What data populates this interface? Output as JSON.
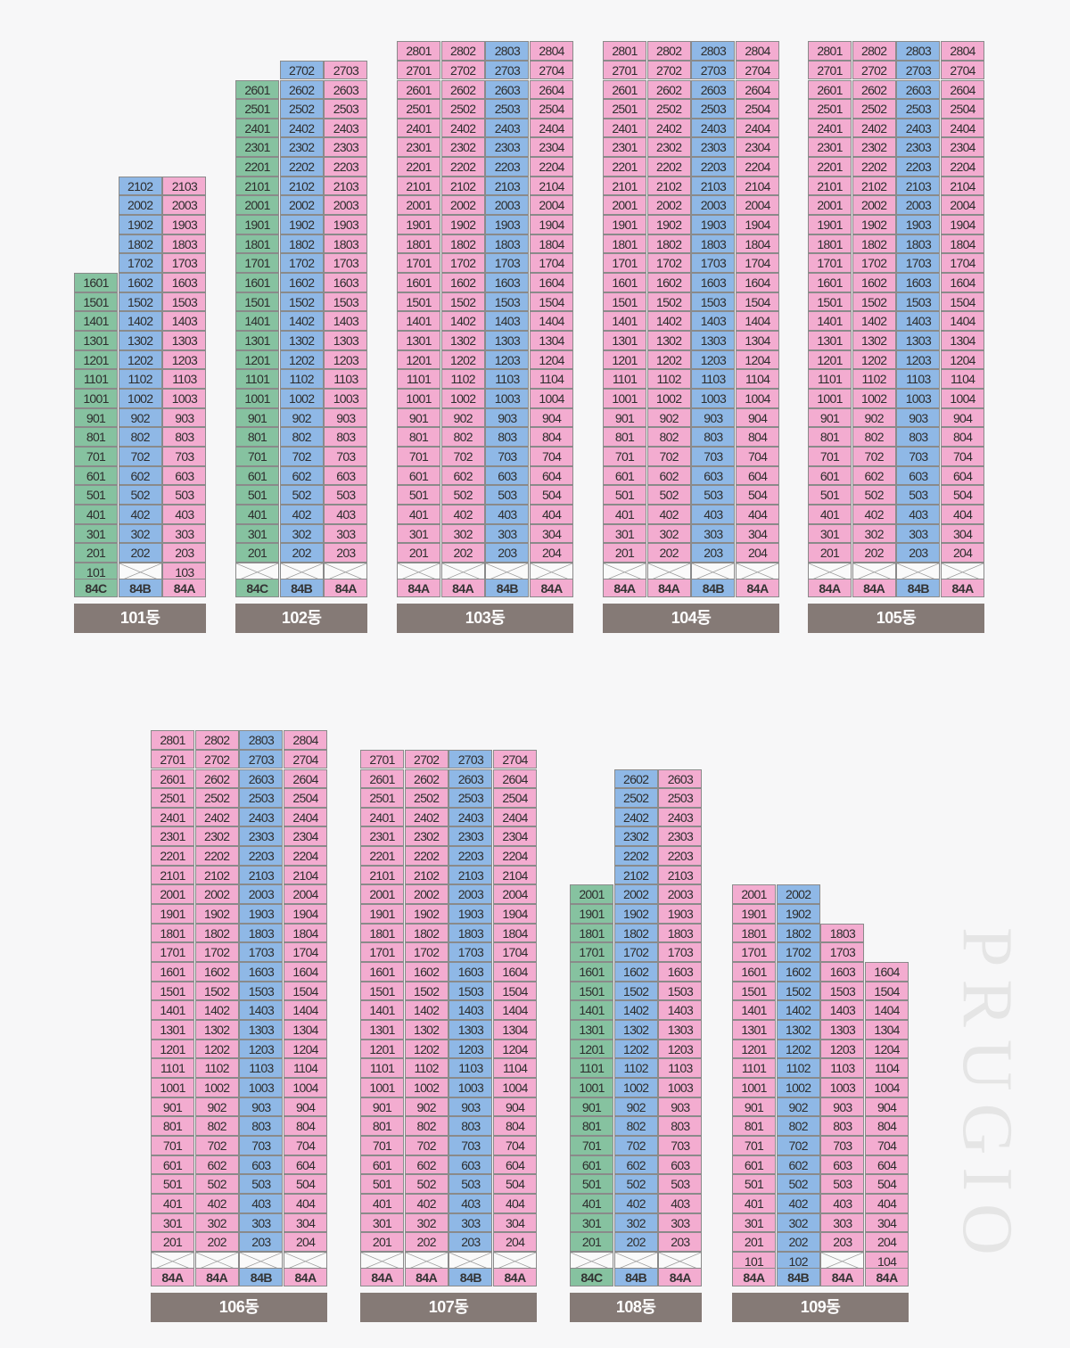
{
  "brand": "PRUGIO",
  "buildings": [
    {
      "name": "101동",
      "floors": {
        "min": 1,
        "max": 21
      },
      "columns": [
        {
          "line": 1,
          "color": "g",
          "type": "84C",
          "max": 16,
          "min": 1,
          "empty": []
        },
        {
          "line": 2,
          "color": "b",
          "type": "84B",
          "max": 21,
          "min": 2,
          "empty": [
            1
          ]
        },
        {
          "line": 3,
          "color": "p",
          "type": "84A",
          "max": 21,
          "min": 1,
          "empty": []
        }
      ]
    },
    {
      "name": "102동",
      "floors": {
        "min": 1,
        "max": 27
      },
      "columns": [
        {
          "line": 1,
          "color": "g",
          "type": "84C",
          "max": 26,
          "min": 2,
          "empty": [
            1
          ]
        },
        {
          "line": 2,
          "color": "b",
          "type": "84B",
          "max": 27,
          "min": 2,
          "empty": [
            1
          ]
        },
        {
          "line": 3,
          "color": "p",
          "type": "84A",
          "max": 27,
          "min": 2,
          "empty": [
            1
          ]
        }
      ]
    },
    {
      "name": "103동",
      "floors": {
        "min": 1,
        "max": 28
      },
      "columns": [
        {
          "line": 1,
          "color": "p",
          "type": "84A",
          "max": 28,
          "min": 2,
          "empty": [
            1
          ]
        },
        {
          "line": 2,
          "color": "p",
          "type": "84A",
          "max": 28,
          "min": 2,
          "empty": [
            1
          ]
        },
        {
          "line": 3,
          "color": "b",
          "type": "84B",
          "max": 28,
          "min": 2,
          "empty": [
            1
          ]
        },
        {
          "line": 4,
          "color": "p",
          "type": "84A",
          "max": 28,
          "min": 2,
          "empty": [
            1
          ]
        }
      ]
    },
    {
      "name": "104동",
      "floors": {
        "min": 1,
        "max": 28
      },
      "columns": [
        {
          "line": 1,
          "color": "p",
          "type": "84A",
          "max": 28,
          "min": 2,
          "empty": [
            1
          ]
        },
        {
          "line": 2,
          "color": "p",
          "type": "84A",
          "max": 28,
          "min": 2,
          "empty": [
            1
          ]
        },
        {
          "line": 3,
          "color": "b",
          "type": "84B",
          "max": 28,
          "min": 2,
          "empty": [
            1
          ]
        },
        {
          "line": 4,
          "color": "p",
          "type": "84A",
          "max": 28,
          "min": 2,
          "empty": [
            1
          ]
        }
      ]
    },
    {
      "name": "105동",
      "floors": {
        "min": 1,
        "max": 28
      },
      "columns": [
        {
          "line": 1,
          "color": "p",
          "type": "84A",
          "max": 28,
          "min": 2,
          "empty": [
            1
          ]
        },
        {
          "line": 2,
          "color": "p",
          "type": "84A",
          "max": 28,
          "min": 2,
          "empty": [
            1
          ]
        },
        {
          "line": 3,
          "color": "b",
          "type": "84B",
          "max": 28,
          "min": 2,
          "empty": [
            1
          ]
        },
        {
          "line": 4,
          "color": "p",
          "type": "84A",
          "max": 28,
          "min": 2,
          "empty": [
            1
          ]
        }
      ]
    },
    {
      "name": "106동",
      "floors": {
        "min": 1,
        "max": 28
      },
      "columns": [
        {
          "line": 1,
          "color": "p",
          "type": "84A",
          "max": 28,
          "min": 2,
          "empty": [
            1
          ]
        },
        {
          "line": 2,
          "color": "p",
          "type": "84A",
          "max": 28,
          "min": 2,
          "empty": [
            1
          ]
        },
        {
          "line": 3,
          "color": "b",
          "type": "84B",
          "max": 28,
          "min": 2,
          "empty": [
            1
          ]
        },
        {
          "line": 4,
          "color": "p",
          "type": "84A",
          "max": 28,
          "min": 2,
          "empty": [
            1
          ]
        }
      ]
    },
    {
      "name": "107동",
      "floors": {
        "min": 1,
        "max": 27
      },
      "columns": [
        {
          "line": 1,
          "color": "p",
          "type": "84A",
          "max": 27,
          "min": 2,
          "empty": [
            1
          ]
        },
        {
          "line": 2,
          "color": "p",
          "type": "84A",
          "max": 27,
          "min": 2,
          "empty": [
            1
          ]
        },
        {
          "line": 3,
          "color": "b",
          "type": "84B",
          "max": 27,
          "min": 2,
          "empty": [
            1
          ]
        },
        {
          "line": 4,
          "color": "p",
          "type": "84A",
          "max": 27,
          "min": 2,
          "empty": [
            1
          ]
        }
      ]
    },
    {
      "name": "108동",
      "floors": {
        "min": 1,
        "max": 26
      },
      "columns": [
        {
          "line": 1,
          "color": "g",
          "type": "84C",
          "max": 20,
          "min": 2,
          "empty": [
            1
          ]
        },
        {
          "line": 2,
          "color": "b",
          "type": "84B",
          "max": 26,
          "min": 2,
          "empty": [
            1
          ]
        },
        {
          "line": 3,
          "color": "p",
          "type": "84A",
          "max": 26,
          "min": 2,
          "empty": [
            1
          ]
        }
      ]
    },
    {
      "name": "109동",
      "floors": {
        "min": 1,
        "max": 20
      },
      "columns": [
        {
          "line": 1,
          "color": "p",
          "type": "84A",
          "max": 20,
          "min": 1,
          "empty": []
        },
        {
          "line": 2,
          "color": "b",
          "type": "84B",
          "max": 20,
          "min": 1,
          "empty": []
        },
        {
          "line": 3,
          "color": "p",
          "type": "84A",
          "max": 18,
          "min": 2,
          "empty": [
            1
          ]
        },
        {
          "line": 4,
          "color": "p",
          "type": "84A",
          "max": 16,
          "min": 1,
          "empty": []
        }
      ]
    }
  ]
}
